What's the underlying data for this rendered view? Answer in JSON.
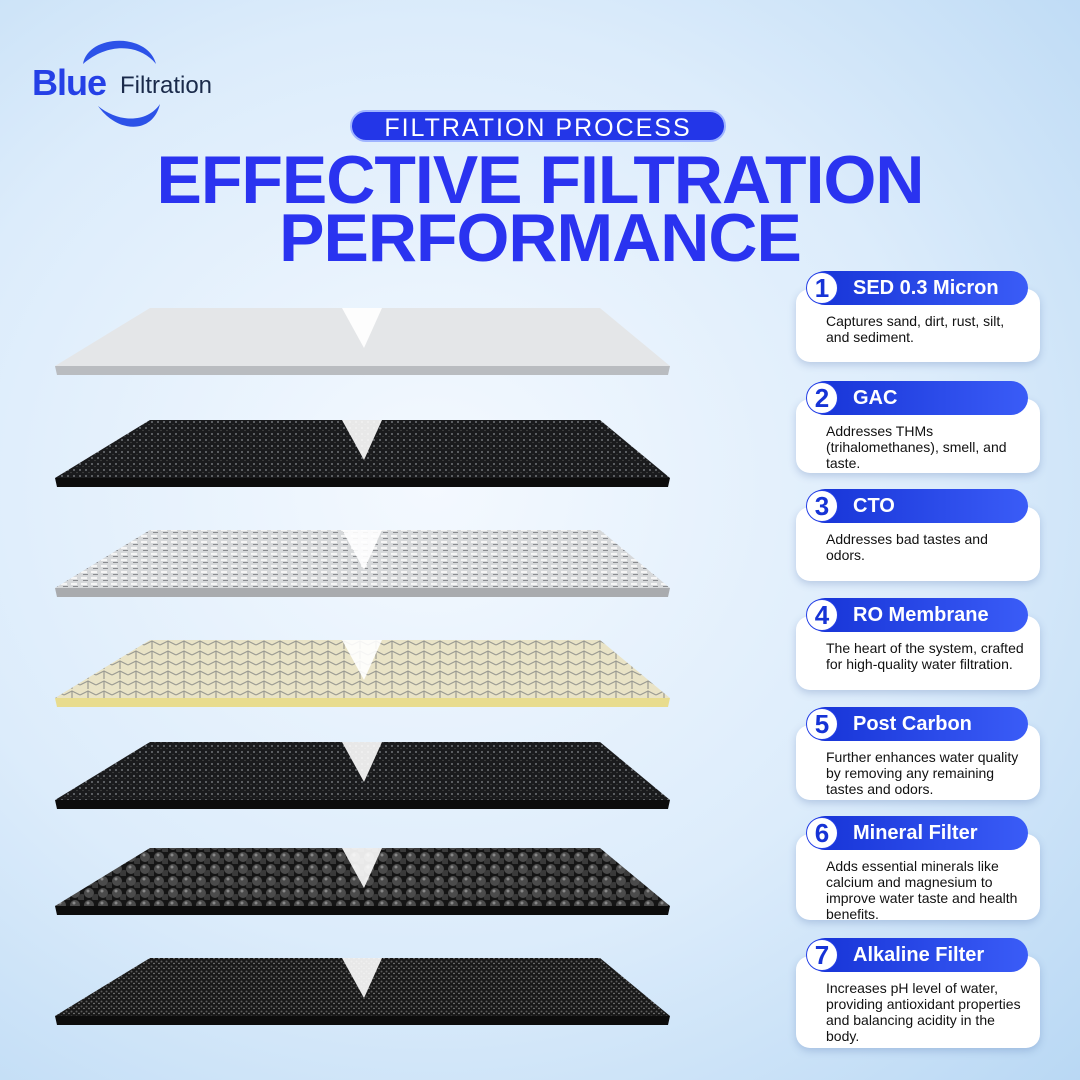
{
  "logo": {
    "brand": "Blue",
    "sub": "Filtration"
  },
  "header": {
    "tag": "FILTRATION PROCESS",
    "title_lines": [
      "EFFECTIVE FILTRATION",
      "PERFORMANCE"
    ]
  },
  "stages": [
    {
      "number": "1",
      "name": "SED 0.3 Micron",
      "description": "Captures sand, dirt, rust, silt, and sediment."
    },
    {
      "number": "2",
      "name": "GAC",
      "description": "Addresses THMs (trihalomethanes), smell, and taste."
    },
    {
      "number": "3",
      "name": "CTO",
      "description": "Addresses bad tastes and odors."
    },
    {
      "number": "4",
      "name": "RO Membrane",
      "description": "The heart of the system, crafted for high-quality water filtration."
    },
    {
      "number": "5",
      "name": "Post Carbon",
      "description": "Further enhances water quality by removing any remaining tastes and odors."
    },
    {
      "number": "6",
      "name": "Mineral Filter",
      "description": "Adds essential minerals like calcium and magnesium to improve water taste and health benefits."
    },
    {
      "number": "7",
      "name": "Alkaline Filter",
      "description": "Increases pH level of water, providing antioxidant properties and balancing acidity in the body."
    }
  ]
}
